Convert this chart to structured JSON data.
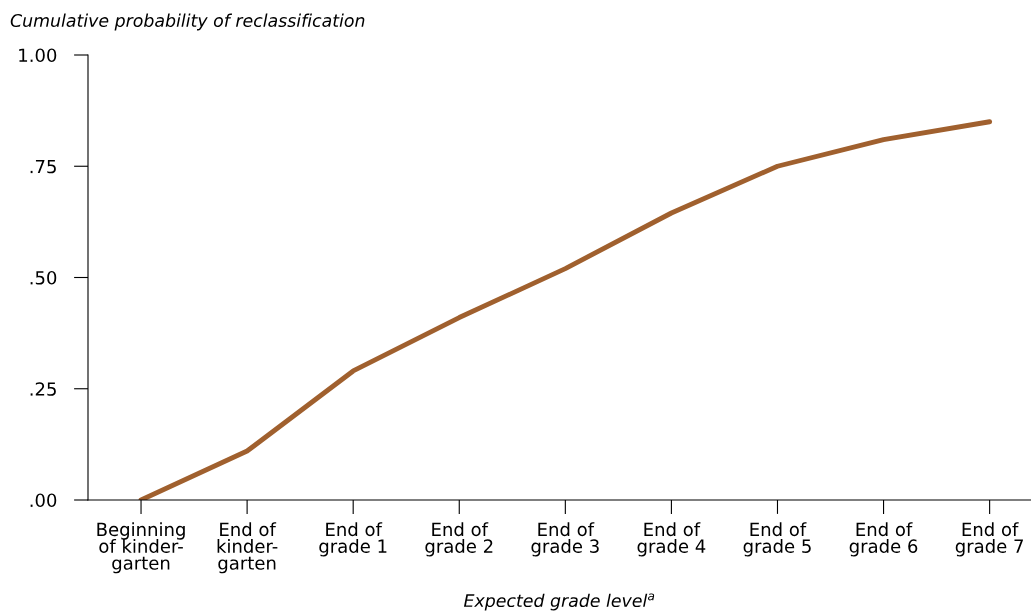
{
  "chart_data": {
    "type": "line",
    "ylabel": "Cumulative probability of reclassification",
    "xlabel": "Expected grade level$^{a}$",
    "categories": [
      "Beginning\nof kinder-\ngarten",
      "End of\nkinder-\ngarten",
      "End of\ngrade 1",
      "End of\ngrade 2",
      "End of\ngrade 3",
      "End of\ngrade 4",
      "End of\ngrade 5",
      "End of\ngrade 6",
      "End of\ngrade 7"
    ],
    "series": [
      {
        "color": "#a0602e",
        "values": [
          0.0,
          0.11,
          0.29,
          0.41,
          0.52,
          0.645,
          0.75,
          0.81,
          0.85
        ]
      }
    ],
    "ylim": [
      0,
      1
    ],
    "yticks": [
      {
        "value": 0,
        "label": ".00"
      },
      {
        "value": 0.25,
        "label": ".25"
      },
      {
        "value": 0.5,
        "label": ".50"
      },
      {
        "value": 0.75,
        "label": ".75"
      },
      {
        "value": 1,
        "label": "1.00"
      }
    ],
    "grid": false,
    "legend": false,
    "marker": "none",
    "line_style": "solid"
  }
}
